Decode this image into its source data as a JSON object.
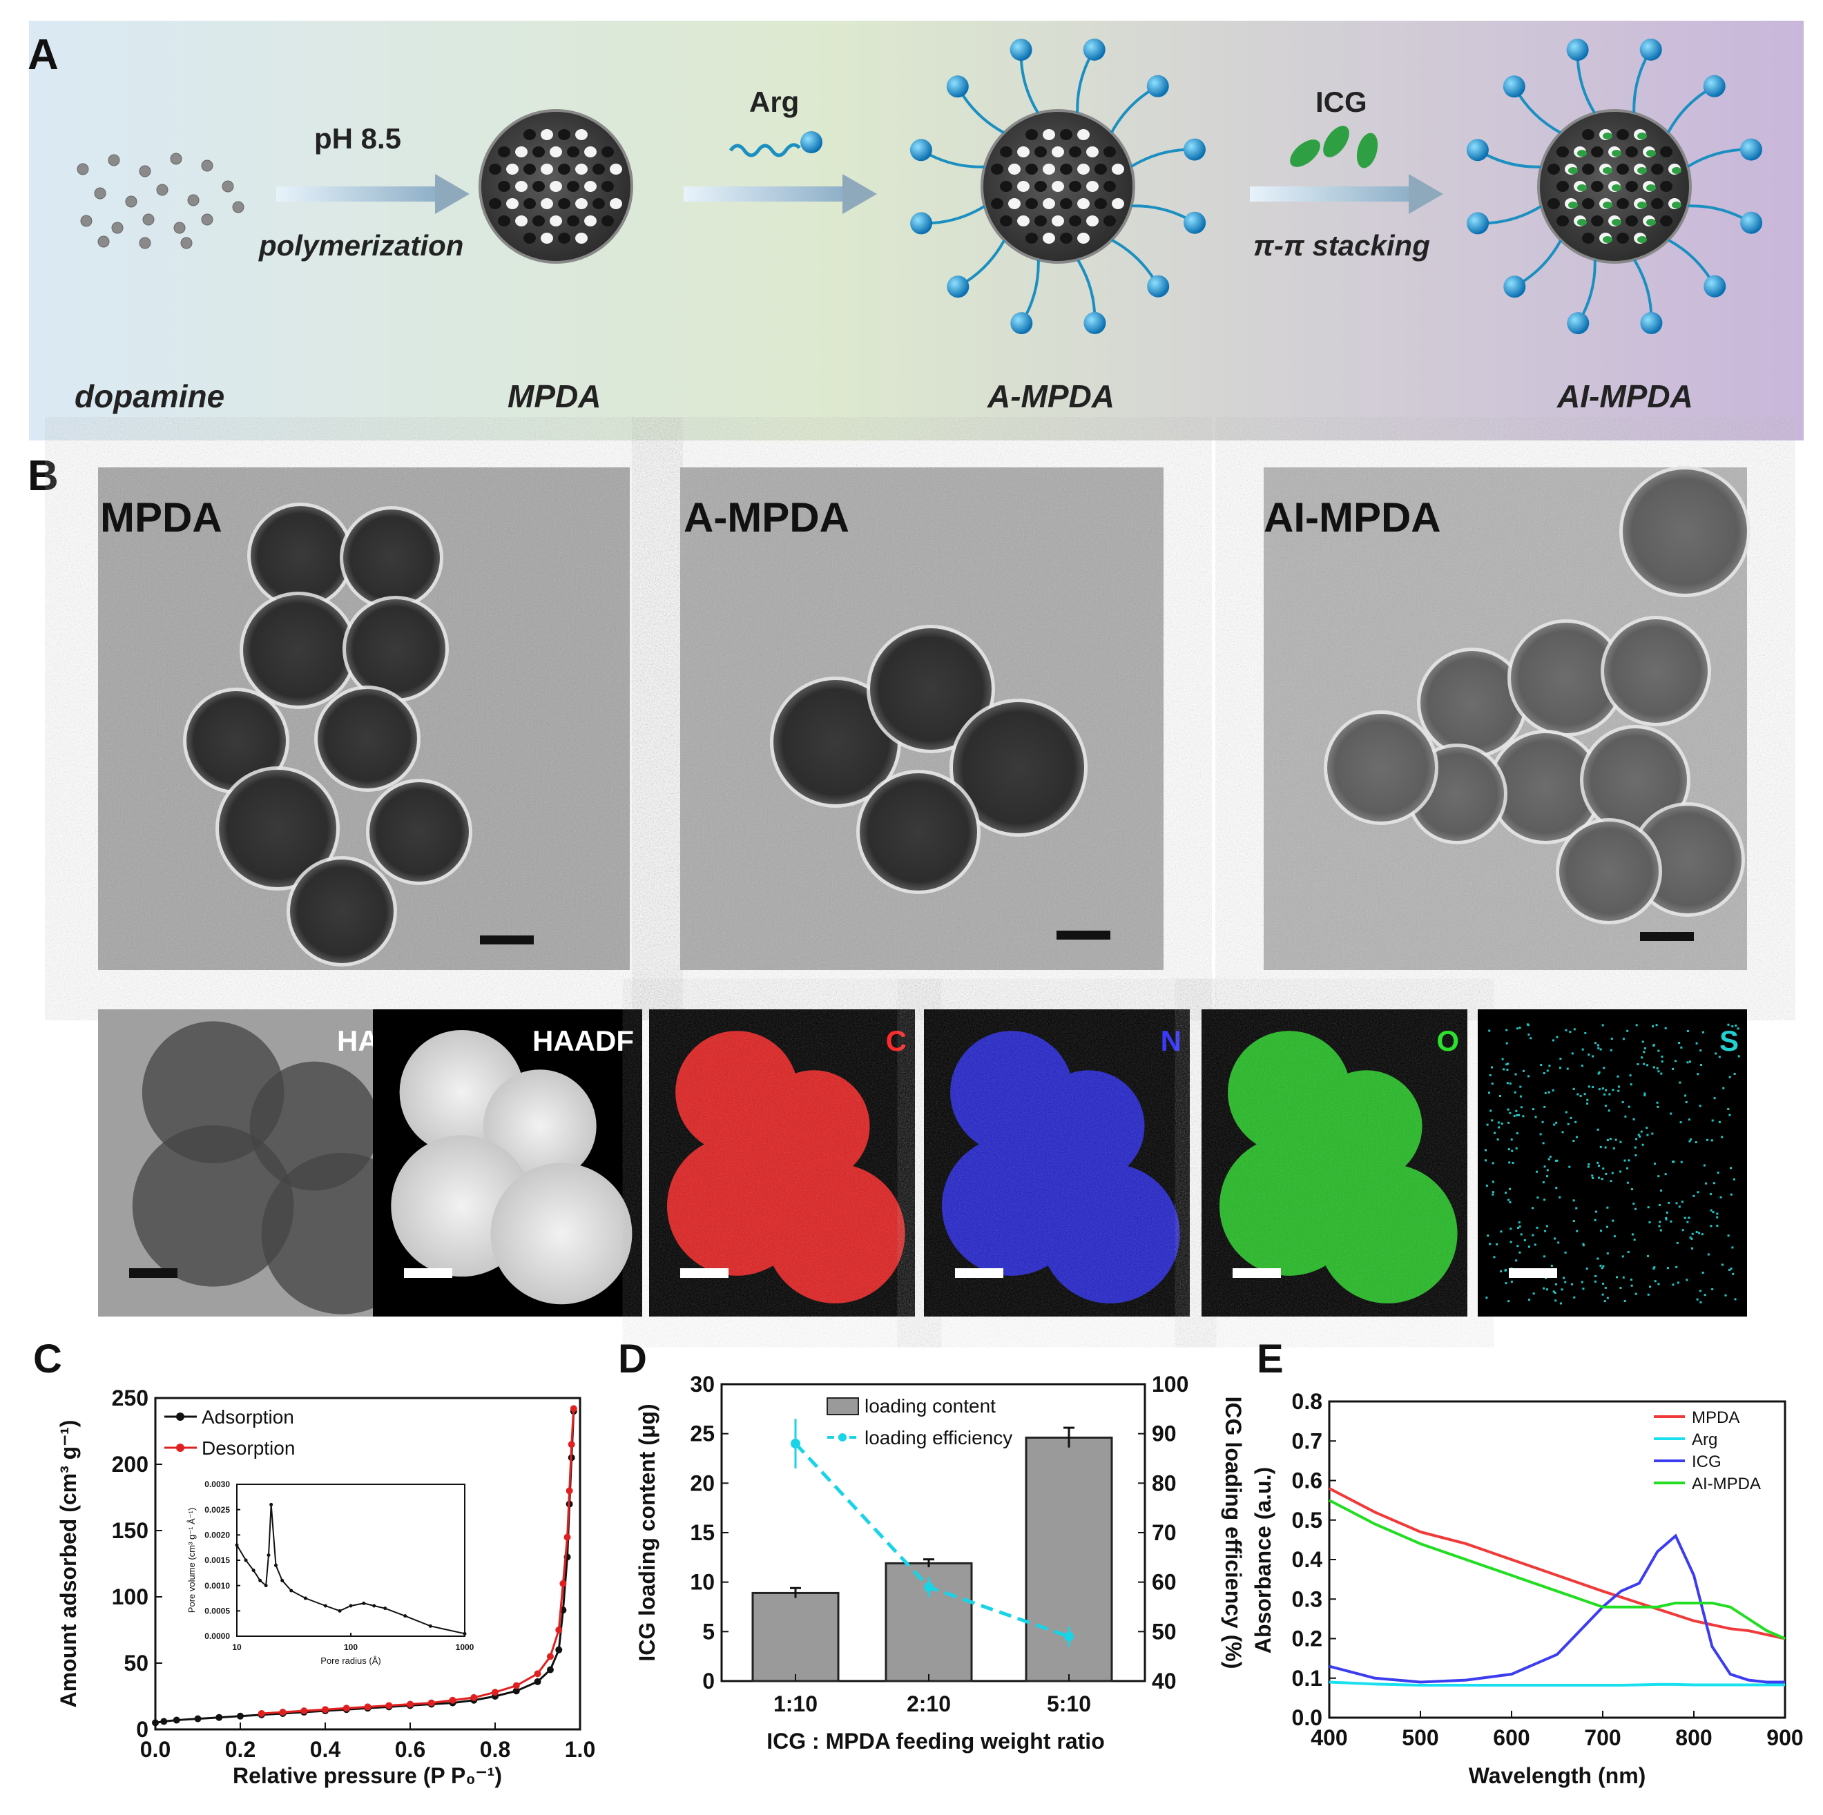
{
  "panelA": {
    "letter": "A",
    "dopamine": "dopamine",
    "ph": "pH 8.5",
    "polymerization": "polymerization",
    "mpda": "MPDA",
    "arg": "Arg",
    "ampda": "A-MPDA",
    "icg": "ICG",
    "stacking": "π-π stacking",
    "aimpda": "AI-MPDA",
    "colors": {
      "bg_left": "#dbe9f4",
      "bg_mid": "#dde9cf",
      "bg_right": "#c9b7db",
      "arrow": "#8fb9d8",
      "arg_tip": "#1a8fd0",
      "icg": "#2ea043"
    }
  },
  "panelB": {
    "letter": "B",
    "tem_labels": [
      "MPDA",
      "A-MPDA",
      "AI-MPDA"
    ],
    "map_labels": [
      "HAADF",
      "HAADF",
      "C",
      "N",
      "O",
      "S"
    ],
    "map_colors": [
      "#ffffff",
      "#ffffff",
      "#ff2a2a",
      "#3a3aff",
      "#2ee02e",
      "#22d0d0"
    ]
  },
  "panelC": {
    "letter": "C",
    "chart_data": {
      "type": "line",
      "xlabel": "Relative pressure (P P₀⁻¹)",
      "ylabel": "Amount adsorbed (cm³ g⁻¹)",
      "xlim": [
        0.0,
        1.0
      ],
      "ylim": [
        0,
        250
      ],
      "xticks": [
        "0.0",
        "0.2",
        "0.4",
        "0.6",
        "0.8",
        "1.0"
      ],
      "yticks": [
        "0",
        "50",
        "100",
        "150",
        "200",
        "250"
      ],
      "legend": "top-left",
      "series": [
        {
          "name": "Adsorption",
          "color": "#111111",
          "x": [
            0.0,
            0.02,
            0.05,
            0.1,
            0.15,
            0.2,
            0.25,
            0.3,
            0.35,
            0.4,
            0.45,
            0.5,
            0.55,
            0.6,
            0.65,
            0.7,
            0.75,
            0.8,
            0.85,
            0.9,
            0.93,
            0.95,
            0.96,
            0.97,
            0.975,
            0.98,
            0.985
          ],
          "y": [
            5,
            6,
            7,
            8,
            9,
            10,
            11,
            12,
            13,
            14,
            15,
            16,
            17,
            18,
            19,
            20,
            22,
            25,
            29,
            36,
            45,
            60,
            90,
            130,
            170,
            205,
            240
          ]
        },
        {
          "name": "Desorption",
          "color": "#e02020",
          "x": [
            0.985,
            0.98,
            0.975,
            0.97,
            0.96,
            0.95,
            0.93,
            0.9,
            0.85,
            0.8,
            0.75,
            0.7,
            0.65,
            0.6,
            0.55,
            0.5,
            0.45,
            0.4,
            0.35,
            0.3,
            0.25
          ],
          "y": [
            242,
            215,
            180,
            145,
            110,
            75,
            55,
            42,
            33,
            28,
            24,
            22,
            20,
            19,
            18,
            17,
            16,
            15,
            14,
            13,
            12
          ]
        }
      ],
      "inset": {
        "xlabel": "Pore radius (Å)",
        "ylabel": "Pore volume (cm³ g⁻¹ Å⁻¹)",
        "xscale": "log",
        "xlim": [
          10,
          1000
        ],
        "ylim": [
          0,
          0.003
        ],
        "xticks": [
          "10",
          "100",
          "1000"
        ],
        "yticks": [
          "0.0000",
          "0.0005",
          "0.0010",
          "0.0015",
          "0.0020",
          "0.0025",
          "0.0030"
        ],
        "x": [
          10,
          12,
          14,
          16,
          18,
          19,
          20,
          22,
          25,
          30,
          40,
          60,
          80,
          100,
          130,
          160,
          200,
          300,
          500,
          1000
        ],
        "y": [
          0.0018,
          0.0015,
          0.0013,
          0.0011,
          0.001,
          0.0016,
          0.0026,
          0.0014,
          0.0011,
          0.0009,
          0.00075,
          0.0006,
          0.0005,
          0.0006,
          0.00065,
          0.0006,
          0.00055,
          0.0004,
          0.0002,
          5e-05
        ]
      }
    }
  },
  "panelD": {
    "letter": "D",
    "chart_data": {
      "type": "bar",
      "xlabel": "ICG : MPDA feeding weight ratio",
      "ylabel": "ICG loading content (μg)",
      "y2label": "ICG loading efficiency (%)",
      "categories": [
        "1:10",
        "2:10",
        "5:10"
      ],
      "ylim": [
        0,
        30
      ],
      "y2lim": [
        40,
        100
      ],
      "yticks": [
        "0",
        "5",
        "10",
        "15",
        "20",
        "25",
        "30"
      ],
      "y2ticks": [
        "40",
        "50",
        "60",
        "70",
        "80",
        "90",
        "100"
      ],
      "legend": "top-left",
      "series": [
        {
          "name": "loading content",
          "color": "#9a9a9a",
          "values": [
            8.9,
            11.9,
            24.6
          ],
          "errors": [
            0.5,
            0.4,
            1.0
          ]
        },
        {
          "name": "loading efficiency",
          "color": "#19d3e6",
          "axis": "right",
          "values": [
            88,
            59,
            49
          ],
          "errors": [
            5,
            2,
            2
          ]
        }
      ]
    }
  },
  "panelE": {
    "letter": "E",
    "chart_data": {
      "type": "line",
      "xlabel": "Wavelength (nm)",
      "ylabel": "Absorbance (a.u.)",
      "xlim": [
        400,
        900
      ],
      "ylim": [
        0.0,
        0.8
      ],
      "xticks": [
        "400",
        "500",
        "600",
        "700",
        "800",
        "900"
      ],
      "yticks": [
        "0.0",
        "0.1",
        "0.2",
        "0.3",
        "0.4",
        "0.5",
        "0.6",
        "0.7",
        "0.8"
      ],
      "legend": "top-right",
      "x": [
        400,
        450,
        500,
        550,
        600,
        650,
        700,
        720,
        740,
        760,
        780,
        800,
        820,
        840,
        860,
        880,
        900
      ],
      "series": [
        {
          "name": "MPDA",
          "color": "#f03a3a",
          "values": [
            0.58,
            0.52,
            0.47,
            0.44,
            0.4,
            0.36,
            0.32,
            0.305,
            0.29,
            0.275,
            0.26,
            0.245,
            0.235,
            0.225,
            0.22,
            0.21,
            0.2
          ]
        },
        {
          "name": "Arg",
          "color": "#19e0f0",
          "values": [
            0.09,
            0.085,
            0.082,
            0.082,
            0.082,
            0.082,
            0.082,
            0.082,
            0.083,
            0.084,
            0.084,
            0.083,
            0.083,
            0.083,
            0.083,
            0.083,
            0.083
          ]
        },
        {
          "name": "ICG",
          "color": "#3c3cf0",
          "values": [
            0.13,
            0.1,
            0.09,
            0.095,
            0.11,
            0.16,
            0.28,
            0.32,
            0.34,
            0.42,
            0.46,
            0.36,
            0.18,
            0.11,
            0.095,
            0.09,
            0.09
          ]
        },
        {
          "name": "AI-MPDA",
          "color": "#22dd22",
          "values": [
            0.55,
            0.49,
            0.44,
            0.4,
            0.36,
            0.32,
            0.28,
            0.28,
            0.28,
            0.28,
            0.29,
            0.29,
            0.29,
            0.28,
            0.25,
            0.22,
            0.2
          ]
        }
      ]
    }
  }
}
